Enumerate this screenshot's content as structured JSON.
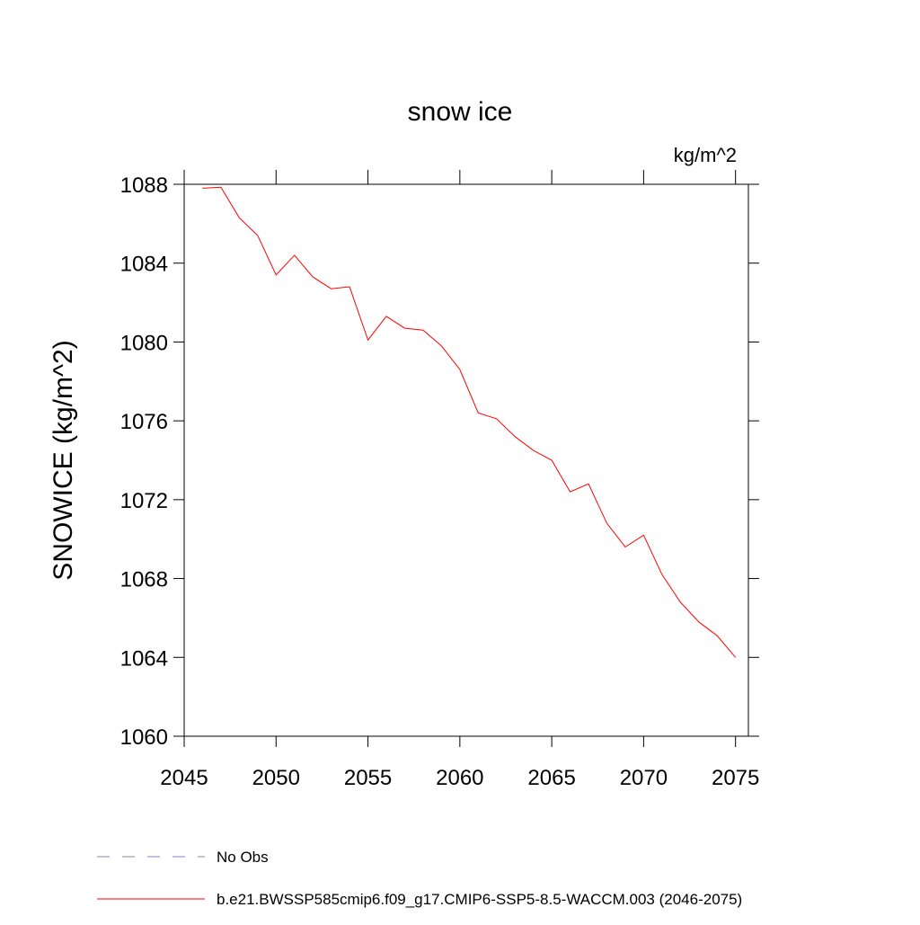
{
  "chart_data": {
    "type": "line",
    "title": "snow ice",
    "units_label": "kg/m^2",
    "y_label": "SNOWICE  (kg/m^2)",
    "x": [
      2046,
      2047,
      2048,
      2049,
      2050,
      2051,
      2052,
      2053,
      2054,
      2055,
      2056,
      2057,
      2058,
      2059,
      2060,
      2061,
      2062,
      2063,
      2064,
      2065,
      2066,
      2067,
      2068,
      2069,
      2070,
      2071,
      2072,
      2073,
      2074,
      2075
    ],
    "series": [
      {
        "name": "b.e21.BWSSP585cmip6.f09_g17.CMIP6-SSP5-8.5-WACCM.003 (2046-2075)",
        "color": "#ff0000",
        "values": [
          1087.8,
          1087.85,
          1086.3,
          1085.4,
          1083.4,
          1084.4,
          1083.3,
          1082.7,
          1082.8,
          1080.1,
          1081.3,
          1080.7,
          1080.6,
          1079.8,
          1078.6,
          1076.4,
          1076.1,
          1075.2,
          1074.5,
          1074.0,
          1072.4,
          1072.8,
          1070.8,
          1069.6,
          1070.2,
          1068.2,
          1066.8,
          1065.8,
          1065.1,
          1064.0
        ]
      }
    ],
    "legend_extra": [
      {
        "name": "No Obs",
        "color": "#8080c0",
        "style": "dashed"
      }
    ],
    "xlim": [
      2045,
      2075.7
    ],
    "xticks": [
      2045,
      2050,
      2055,
      2060,
      2065,
      2070,
      2075
    ],
    "ylim": [
      1060,
      1088
    ],
    "yticks": [
      1060,
      1064,
      1068,
      1072,
      1076,
      1080,
      1084,
      1088
    ]
  }
}
